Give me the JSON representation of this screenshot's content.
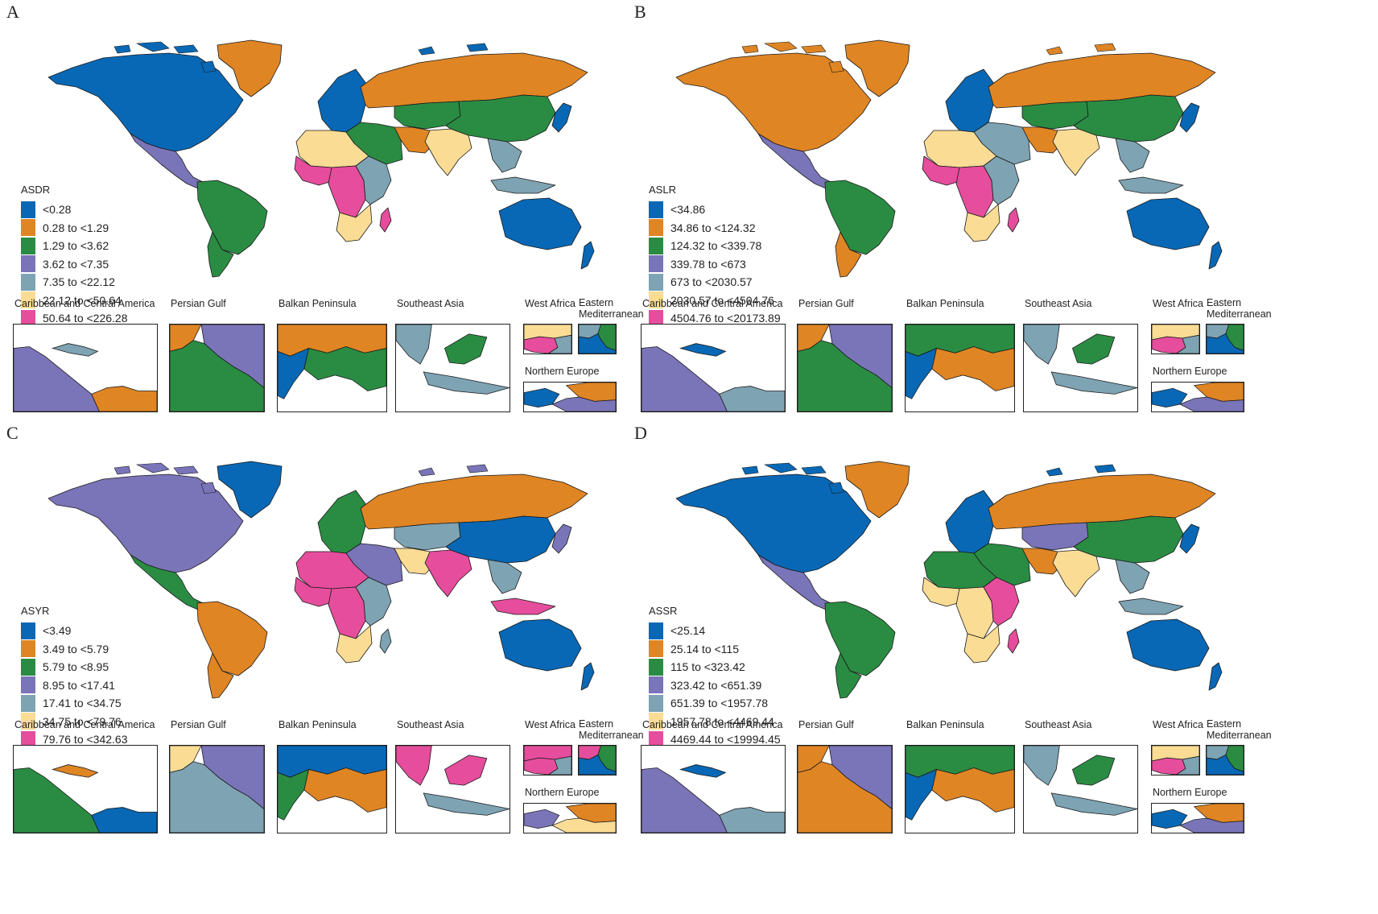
{
  "colors": {
    "c0": "#0868b5",
    "c1": "#df8524",
    "c2": "#2a8c43",
    "c3": "#7a74b8",
    "c4": "#7ea3b3",
    "c5": "#fbdc95",
    "c6": "#e64d9c",
    "stroke": "#1a1a1a"
  },
  "inset_labels": {
    "caribbean": "Caribbean and Central America",
    "gulf": "Persian Gulf",
    "balkan": "Balkan Peninsula",
    "seasia": "Southeast Asia",
    "westafrica": "West Africa",
    "eastmed": "Eastern Mediterranean",
    "northeurope": "Northern Europe"
  },
  "panels": [
    {
      "letter": "A",
      "metric": "ASDR",
      "legend": [
        "<0.28",
        "0.28 to <1.29",
        "1.29 to <3.62",
        "3.62 to <7.35",
        "7.35 to <22.12",
        "22.12 to <50.64",
        "50.64 to <226.28"
      ],
      "regions": {
        "na": 0,
        "greenland": 1,
        "ca": 3,
        "sa": 2,
        "sa_south": 2,
        "europe": 0,
        "russia": 1,
        "centralasia": 2,
        "mideast": 2,
        "iran": 1,
        "india": 5,
        "china": 2,
        "sea": 4,
        "indonesia": 4,
        "japan": 0,
        "north_africa": 5,
        "west_africa": 6,
        "central_africa": 6,
        "east_africa": 4,
        "south_africa": 5,
        "madagascar": 6,
        "australia": 0,
        "nz": 0
      },
      "insets": {
        "caribbean": [
          3,
          1,
          4
        ],
        "gulf": [
          1,
          3,
          2
        ],
        "balkan": [
          1,
          2,
          0
        ],
        "seasia": [
          4,
          2,
          4
        ],
        "westafrica": [
          5,
          6,
          4
        ],
        "eastmed": [
          4,
          2,
          0
        ],
        "northeurope": [
          0,
          1,
          3
        ]
      }
    },
    {
      "letter": "B",
      "metric": "ASLR",
      "legend": [
        "<34.86",
        "34.86 to <124.32",
        "124.32 to <339.78",
        "339.78 to <673",
        "673 to <2030.57",
        "2030.57 to <4504.76",
        "4504.76 to <20173.89"
      ],
      "regions": {
        "na": 1,
        "greenland": 1,
        "ca": 3,
        "sa": 2,
        "sa_south": 1,
        "europe": 0,
        "russia": 1,
        "centralasia": 2,
        "mideast": 4,
        "iran": 1,
        "india": 5,
        "china": 2,
        "sea": 4,
        "indonesia": 4,
        "japan": 0,
        "north_africa": 5,
        "west_africa": 6,
        "central_africa": 6,
        "east_africa": 4,
        "south_africa": 5,
        "madagascar": 6,
        "australia": 0,
        "nz": 0
      },
      "insets": {
        "caribbean": [
          3,
          4,
          0
        ],
        "gulf": [
          1,
          3,
          2
        ],
        "balkan": [
          2,
          1,
          0
        ],
        "seasia": [
          4,
          2,
          4
        ],
        "westafrica": [
          5,
          6,
          4
        ],
        "eastmed": [
          4,
          2,
          0
        ],
        "northeurope": [
          0,
          1,
          3
        ]
      }
    },
    {
      "letter": "C",
      "metric": "ASYR",
      "legend": [
        "<3.49",
        "3.49 to <5.79",
        "5.79 to <8.95",
        "8.95 to <17.41",
        "17.41 to <34.75",
        "34.75 to <79.76",
        "79.76 to <342.63"
      ],
      "regions": {
        "na": 3,
        "greenland": 0,
        "ca": 2,
        "sa": 1,
        "sa_south": 1,
        "europe": 2,
        "russia": 1,
        "centralasia": 4,
        "mideast": 3,
        "iran": 5,
        "india": 6,
        "china": 0,
        "sea": 4,
        "indonesia": 6,
        "japan": 3,
        "north_africa": 6,
        "west_africa": 6,
        "central_africa": 6,
        "east_africa": 4,
        "south_africa": 5,
        "madagascar": 4,
        "australia": 0,
        "nz": 0
      },
      "insets": {
        "caribbean": [
          2,
          0,
          1
        ],
        "gulf": [
          5,
          3,
          4
        ],
        "balkan": [
          0,
          1,
          2
        ],
        "seasia": [
          6,
          6,
          4
        ],
        "westafrica": [
          6,
          6,
          4
        ],
        "eastmed": [
          6,
          2,
          0
        ],
        "northeurope": [
          3,
          1,
          5
        ]
      }
    },
    {
      "letter": "D",
      "metric": "ASSR",
      "legend": [
        "<25.14",
        "25.14 to <115",
        "115 to <323.42",
        "323.42 to <651.39",
        "651.39 to <1957.78",
        "1957.78 to <4469.44",
        "4469.44 to <19994.45"
      ],
      "regions": {
        "na": 0,
        "greenland": 1,
        "ca": 3,
        "sa": 2,
        "sa_south": 2,
        "europe": 0,
        "russia": 1,
        "centralasia": 3,
        "mideast": 2,
        "iran": 1,
        "india": 5,
        "china": 2,
        "sea": 4,
        "indonesia": 4,
        "japan": 0,
        "north_africa": 2,
        "west_africa": 5,
        "central_africa": 5,
        "east_africa": 6,
        "south_africa": 5,
        "madagascar": 6,
        "australia": 0,
        "nz": 0
      },
      "insets": {
        "caribbean": [
          3,
          4,
          0
        ],
        "gulf": [
          1,
          3,
          1
        ],
        "balkan": [
          2,
          1,
          0
        ],
        "seasia": [
          4,
          2,
          4
        ],
        "westafrica": [
          5,
          6,
          4
        ],
        "eastmed": [
          4,
          2,
          0
        ],
        "northeurope": [
          0,
          1,
          3
        ]
      }
    }
  ]
}
